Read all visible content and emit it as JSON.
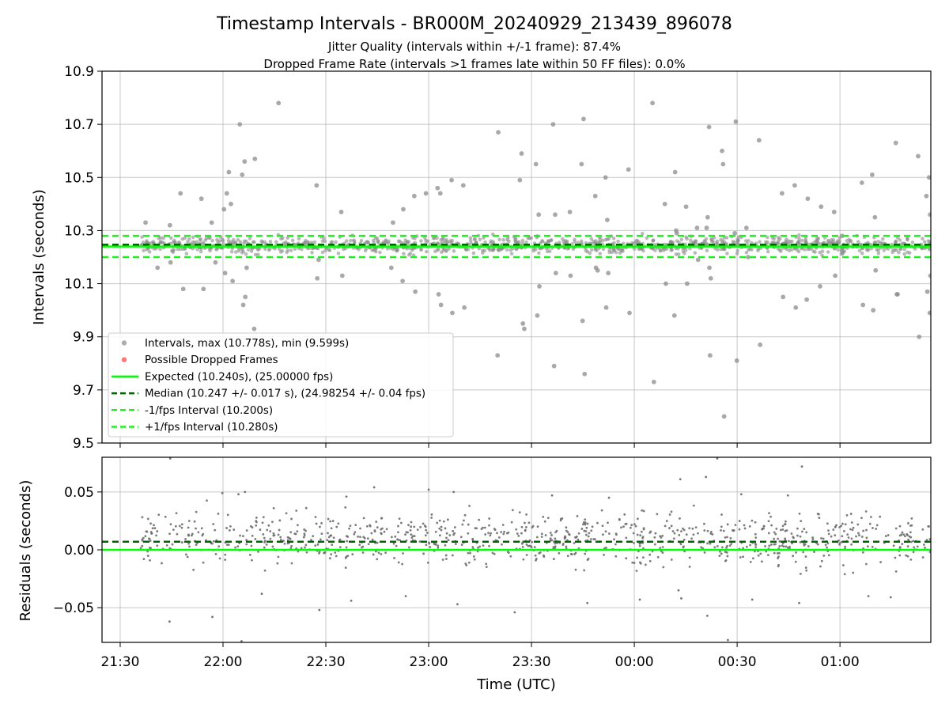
{
  "figure": {
    "title": "Timestamp Intervals - BR000M_20240929_213439_896078",
    "subtitle1": "Jitter Quality (intervals within +/-1 frame): 87.4%",
    "subtitle2": "Dropped Frame Rate (intervals >1 frames late within 50 FF files): 0.0%",
    "xlabel": "Time (UTC)",
    "x_ticks": [
      "21:30",
      "22:00",
      "22:30",
      "23:00",
      "23:30",
      "00:00",
      "00:30",
      "01:00"
    ]
  },
  "chart_data": [
    {
      "type": "scatter",
      "name": "intervals-panel",
      "ylabel": "Intervals (seconds)",
      "ylim": [
        9.5,
        10.9
      ],
      "y_ticks": [
        "9.5",
        "9.7",
        "9.9",
        "10.1",
        "10.3",
        "10.5",
        "10.7",
        "10.9"
      ],
      "x_unit": "minutes after 21:30 UTC",
      "xlim": [
        -5.3,
        236.5
      ],
      "grid": true,
      "legend_location": "lower-left",
      "legend": [
        "Intervals, max (10.778s), min (9.599s)",
        "Possible Dropped Frames",
        "Expected (10.240s), (25.00000 fps)",
        "Median (10.247 +/- 0.017 s), (24.98254 +/- 0.04 fps)",
        "-1/fps Interval (10.200s)",
        "+1/fps Interval (10.280s)"
      ],
      "lines": {
        "expected": 10.24,
        "median": 10.247,
        "minus_one_frame": 10.2,
        "plus_one_frame": 10.28
      },
      "colors": {
        "points": "#8c8c8c",
        "dropped": "#ff5555",
        "expected": "#00ff00",
        "median": "#006400",
        "bounds": "#22ee22"
      },
      "core_band": {
        "x_start": 6.0,
        "x_end": 236.5,
        "y_min": 10.2,
        "y_max": 10.29
      },
      "outliers": [
        [
          7.4,
          10.33
        ],
        [
          10.9,
          10.16
        ],
        [
          14.5,
          10.32
        ],
        [
          14.7,
          10.18
        ],
        [
          17.6,
          10.44
        ],
        [
          18.4,
          10.08
        ],
        [
          23.7,
          10.42
        ],
        [
          24.3,
          10.08
        ],
        [
          26.7,
          10.33
        ],
        [
          27.8,
          10.18
        ],
        [
          30.3,
          10.38
        ],
        [
          30.6,
          10.14
        ],
        [
          31.1,
          10.44
        ],
        [
          31.7,
          10.52
        ],
        [
          32.3,
          10.4
        ],
        [
          32.8,
          10.11
        ],
        [
          34.9,
          10.7
        ],
        [
          35.6,
          10.51
        ],
        [
          35.9,
          10.02
        ],
        [
          36.3,
          10.56
        ],
        [
          36.5,
          10.05
        ],
        [
          36.9,
          10.16
        ],
        [
          39.3,
          10.57
        ],
        [
          39.1,
          9.93
        ],
        [
          46.2,
          10.78
        ],
        [
          57.3,
          10.47
        ],
        [
          57.5,
          10.12
        ],
        [
          57.9,
          10.19
        ],
        [
          64.5,
          10.37
        ],
        [
          64.8,
          10.13
        ],
        [
          79.6,
          10.33
        ],
        [
          79.1,
          10.16
        ],
        [
          82.4,
          10.11
        ],
        [
          82.6,
          10.38
        ],
        [
          85.8,
          10.43
        ],
        [
          86.1,
          10.07
        ],
        [
          89.2,
          10.44
        ],
        [
          92.6,
          10.46
        ],
        [
          92.9,
          10.06
        ],
        [
          93.4,
          10.44
        ],
        [
          93.6,
          10.02
        ],
        [
          96.7,
          10.49
        ],
        [
          96.9,
          9.99
        ],
        [
          100.1,
          10.47
        ],
        [
          100.4,
          10.01
        ],
        [
          110.3,
          10.67
        ],
        [
          110.1,
          9.83
        ],
        [
          116.6,
          10.49
        ],
        [
          117.1,
          10.59
        ],
        [
          117.5,
          9.95
        ],
        [
          117.9,
          9.93
        ],
        [
          121.3,
          10.55
        ],
        [
          121.7,
          9.98
        ],
        [
          122.1,
          10.36
        ],
        [
          122.3,
          10.09
        ],
        [
          126.3,
          10.7
        ],
        [
          126.6,
          9.79
        ],
        [
          126.9,
          10.36
        ],
        [
          127.1,
          10.14
        ],
        [
          131.2,
          10.37
        ],
        [
          131.4,
          10.13
        ],
        [
          134.6,
          10.55
        ],
        [
          134.9,
          9.96
        ],
        [
          135.2,
          10.72
        ],
        [
          135.5,
          9.76
        ],
        [
          138.6,
          10.43
        ],
        [
          138.8,
          10.16
        ],
        [
          139.3,
          10.15
        ],
        [
          141.6,
          10.5
        ],
        [
          141.8,
          10.01
        ],
        [
          142.1,
          10.34
        ],
        [
          142.4,
          10.14
        ],
        [
          148.3,
          10.53
        ],
        [
          148.6,
          9.99
        ],
        [
          155.3,
          10.78
        ],
        [
          155.7,
          9.73
        ],
        [
          158.9,
          10.4
        ],
        [
          159.2,
          10.1
        ],
        [
          161.9,
          10.52
        ],
        [
          162.2,
          10.3
        ],
        [
          162.4,
          10.29
        ],
        [
          161.7,
          9.98
        ],
        [
          165.1,
          10.39
        ],
        [
          165.4,
          10.1
        ],
        [
          168.3,
          10.31
        ],
        [
          168.6,
          10.19
        ],
        [
          171.4,
          10.35
        ],
        [
          171.1,
          10.31
        ],
        [
          171.8,
          10.69
        ],
        [
          172.1,
          9.83
        ],
        [
          171.9,
          10.16
        ],
        [
          172.3,
          10.12
        ],
        [
          175.6,
          10.6
        ],
        [
          175.9,
          10.55
        ],
        [
          176.2,
          9.6
        ],
        [
          179.6,
          10.71
        ],
        [
          179.9,
          9.81
        ],
        [
          179.3,
          10.29
        ],
        [
          182.7,
          10.31
        ],
        [
          183.2,
          10.2
        ],
        [
          186.4,
          10.64
        ],
        [
          186.7,
          9.87
        ],
        [
          193.1,
          10.44
        ],
        [
          193.4,
          10.05
        ],
        [
          196.8,
          10.47
        ],
        [
          197.1,
          10.01
        ],
        [
          200.6,
          10.42
        ],
        [
          200.3,
          10.04
        ],
        [
          204.5,
          10.39
        ],
        [
          204.2,
          10.09
        ],
        [
          208.3,
          10.37
        ],
        [
          208.6,
          10.13
        ],
        [
          210.6,
          10.28
        ],
        [
          210.8,
          10.22
        ],
        [
          216.4,
          10.48
        ],
        [
          216.7,
          10.02
        ],
        [
          219.4,
          10.51
        ],
        [
          219.7,
          10.0
        ],
        [
          220.2,
          10.35
        ],
        [
          220.4,
          10.15
        ],
        [
          226.3,
          10.63
        ],
        [
          226.6,
          10.06
        ],
        [
          226.8,
          10.06
        ],
        [
          232.8,
          10.58
        ],
        [
          233.1,
          9.9
        ],
        [
          235.2,
          10.43
        ],
        [
          235.5,
          10.07
        ],
        [
          236.0,
          10.5
        ],
        [
          236.2,
          9.99
        ],
        [
          236.3,
          10.36
        ],
        [
          236.4,
          10.13
        ]
      ]
    },
    {
      "type": "scatter",
      "name": "residuals-panel",
      "ylabel": "Residuals (seconds)",
      "ylim": [
        -0.08,
        0.08
      ],
      "y_ticks": [
        "−0.05",
        "0.00",
        "0.05"
      ],
      "x_unit": "minutes after 21:30 UTC",
      "xlim": [
        -5.3,
        236.5
      ],
      "grid": true,
      "lines": {
        "expected": 0.0,
        "median": 0.007
      },
      "colors": {
        "points": "#6e6e6e",
        "expected": "#00ff00",
        "median": "#006400"
      },
      "core_band": {
        "x_start": 6.0,
        "x_end": 236.5,
        "y_min": -0.025,
        "y_max": 0.045
      },
      "outliers": [
        [
          14.6,
          0.079
        ],
        [
          14.4,
          -0.062
        ],
        [
          26.9,
          -0.058
        ],
        [
          29.8,
          0.049
        ],
        [
          34.5,
          0.048
        ],
        [
          35.4,
          -0.079
        ],
        [
          36.4,
          0.05
        ],
        [
          41.3,
          -0.038
        ],
        [
          44.8,
          0.036
        ],
        [
          58.1,
          -0.052
        ],
        [
          66.0,
          0.046
        ],
        [
          67.4,
          -0.044
        ],
        [
          74.1,
          0.054
        ],
        [
          83.3,
          -0.04
        ],
        [
          90.0,
          0.052
        ],
        [
          97.3,
          0.05
        ],
        [
          98.4,
          -0.047
        ],
        [
          115.1,
          -0.054
        ],
        [
          126.0,
          0.047
        ],
        [
          136.3,
          -0.046
        ],
        [
          142.6,
          0.045
        ],
        [
          151.6,
          -0.043
        ],
        [
          163.4,
          0.061
        ],
        [
          162.9,
          -0.035
        ],
        [
          163.7,
          -0.042
        ],
        [
          170.9,
          0.063
        ],
        [
          171.3,
          -0.057
        ],
        [
          174.2,
          0.079
        ],
        [
          177.3,
          -0.078
        ],
        [
          181.2,
          0.048
        ],
        [
          184.4,
          -0.043
        ],
        [
          194.8,
          0.047
        ],
        [
          198.9,
          0.072
        ],
        [
          198.1,
          -0.046
        ],
        [
          218.3,
          -0.04
        ],
        [
          224.8,
          -0.041
        ]
      ]
    }
  ]
}
